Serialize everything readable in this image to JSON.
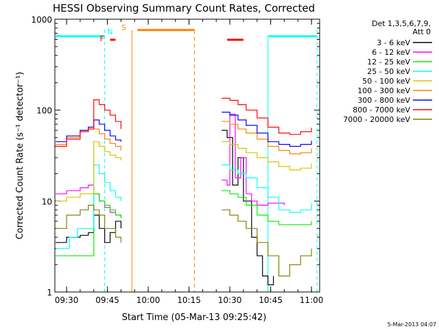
{
  "chart_data": {
    "type": "line",
    "title": "HESSI Observing Summary Count Rates, Corrected",
    "xlabel": "Start Time (05-Mar-13 09:25:42)",
    "ylabel": "Corrected Count Rate (s⁻¹ detector⁻¹)",
    "y_scale": "log",
    "ylim": [
      1,
      1000
    ],
    "xlim": [
      "09:25:42",
      "11:03:00"
    ],
    "x_ticks": [
      "09:30",
      "09:45",
      "10:00",
      "10:15",
      "10:30",
      "10:45",
      "11:00"
    ],
    "y_ticks": [
      "1",
      "10",
      "100",
      "1000"
    ],
    "legend_position": "right",
    "legend_header": [
      "Det 1,3,5,6,7,9,",
      "Att 0"
    ],
    "timestamp": "5-Mar-2013 04:07",
    "series": [
      {
        "name": "3 - 6 keV",
        "color": "#000000",
        "x": [
          "09:26",
          "09:30",
          "09:35",
          "09:38",
          "09:40",
          "09:42",
          "09:44",
          "09:46",
          "09:48",
          "09:50",
          "10:27",
          "10:29",
          "10:31",
          "10:33",
          "10:35",
          "10:38",
          "10:40",
          "10:42",
          "10:44",
          "10:46"
        ],
        "y": [
          3.5,
          4,
          4.2,
          4.5,
          7,
          5,
          3.5,
          4.5,
          6,
          5,
          60,
          50,
          15,
          30,
          10,
          4,
          2.5,
          1.5,
          1.2,
          1.5
        ]
      },
      {
        "name": "6 - 12 keV",
        "color": "#ff00ff",
        "x": [
          "09:26",
          "09:30",
          "09:35",
          "09:38",
          "09:40",
          "09:42",
          "09:44",
          "09:46",
          "09:48",
          "09:50",
          "10:27",
          "10:29",
          "10:30",
          "10:32",
          "10:34",
          "10:36",
          "10:38",
          "10:40",
          "10:44",
          "10:50"
        ],
        "y": [
          12,
          13,
          14,
          15,
          12,
          10,
          8.5,
          7.5,
          7,
          6.5,
          17,
          15,
          90,
          18,
          30,
          12,
          10,
          9,
          9.5,
          9
        ]
      },
      {
        "name": "12 - 25 keV",
        "color": "#00ee00",
        "x": [
          "09:26",
          "09:30",
          "09:35",
          "09:38",
          "09:40",
          "09:42",
          "09:44",
          "09:46",
          "09:48",
          "09:50",
          "10:27",
          "10:30",
          "10:33",
          "10:36",
          "10:40",
          "10:44",
          "10:48",
          "10:52",
          "10:56",
          "11:00"
        ],
        "y": [
          2.5,
          2.5,
          2.5,
          2.5,
          12,
          10,
          9,
          8,
          7,
          6.5,
          13,
          12,
          11,
          9,
          7,
          6,
          5.5,
          5.5,
          5.5,
          6
        ]
      },
      {
        "name": "25 - 50 keV",
        "color": "#00ffff",
        "x": [
          "09:26",
          "09:28",
          "09:31",
          "09:34",
          "09:38",
          "09:40",
          "09:42",
          "09:44",
          "09:46",
          "09:48",
          "09:50",
          "10:27",
          "10:30",
          "10:33",
          "10:36",
          "10:40",
          "10:44",
          "10:48",
          "10:52",
          "10:56",
          "11:00"
        ],
        "y": [
          3,
          3,
          4,
          5,
          5,
          25,
          20,
          16,
          13,
          11,
          10,
          25,
          22,
          20,
          18,
          14,
          11,
          8,
          7.5,
          8,
          9.5
        ]
      },
      {
        "name": "50 - 100 keV",
        "color": "#d4c400",
        "x": [
          "09:26",
          "09:30",
          "09:35",
          "09:38",
          "09:40",
          "09:42",
          "09:44",
          "09:46",
          "09:48",
          "09:50",
          "10:27",
          "10:30",
          "10:33",
          "10:36",
          "10:40",
          "10:44",
          "10:48",
          "10:52",
          "10:56",
          "11:00"
        ],
        "y": [
          10,
          11,
          12,
          12,
          45,
          40,
          35,
          32,
          30,
          28,
          45,
          42,
          38,
          34,
          30,
          27,
          24,
          22,
          23,
          26
        ]
      },
      {
        "name": "100 - 300 keV",
        "color": "#ff7f00",
        "x": [
          "09:26",
          "09:30",
          "09:35",
          "09:38",
          "09:40",
          "09:42",
          "09:44",
          "09:46",
          "09:48",
          "09:50",
          "10:27",
          "10:30",
          "10:33",
          "10:36",
          "10:40",
          "10:44",
          "10:48",
          "10:52",
          "10:56",
          "11:00"
        ],
        "y": [
          42,
          50,
          60,
          62,
          62,
          55,
          48,
          43,
          40,
          36,
          75,
          70,
          62,
          56,
          48,
          40,
          36,
          33,
          34,
          38
        ]
      },
      {
        "name": "300 - 800 keV",
        "color": "#0000ff",
        "x": [
          "09:26",
          "09:30",
          "09:35",
          "09:38",
          "09:40",
          "09:42",
          "09:44",
          "09:46",
          "09:48",
          "09:50",
          "10:27",
          "10:30",
          "10:33",
          "10:36",
          "10:40",
          "10:44",
          "10:48",
          "10:52",
          "10:56",
          "11:00"
        ],
        "y": [
          45,
          52,
          60,
          65,
          78,
          70,
          60,
          52,
          47,
          45,
          95,
          88,
          78,
          68,
          56,
          45,
          42,
          40,
          42,
          46
        ]
      },
      {
        "name": "800 - 7000 keV",
        "color": "#ff0000",
        "x": [
          "09:26",
          "09:30",
          "09:35",
          "09:38",
          "09:40",
          "09:42",
          "09:44",
          "09:46",
          "09:48",
          "09:50",
          "10:27",
          "10:30",
          "10:33",
          "10:36",
          "10:40",
          "10:44",
          "10:48",
          "10:52",
          "10:56",
          "11:00"
        ],
        "y": [
          40,
          48,
          58,
          62,
          130,
          115,
          100,
          88,
          75,
          62,
          135,
          128,
          115,
          100,
          82,
          65,
          56,
          54,
          58,
          64
        ]
      },
      {
        "name": "7000 - 20000 keV",
        "color": "#808000",
        "x": [
          "09:26",
          "09:30",
          "09:35",
          "09:38",
          "09:40",
          "09:42",
          "09:44",
          "09:46",
          "09:48",
          "09:50",
          "10:27",
          "10:30",
          "10:33",
          "10:36",
          "10:40",
          "10:44",
          "10:48",
          "10:52",
          "10:56",
          "11:00"
        ],
        "y": [
          5,
          7,
          8,
          9,
          8,
          7,
          5,
          5,
          4,
          3.5,
          8,
          7,
          6,
          5,
          3.5,
          2.5,
          1.5,
          2,
          2.5,
          3
        ]
      }
    ],
    "annotations": {
      "cyan_bars": {
        "color": "#00ffff",
        "y": 650,
        "spans": [
          [
            "09:26",
            "09:44"
          ],
          [
            "10:44",
            "11:02"
          ]
        ]
      },
      "orange_bar": {
        "color": "#ff7f00",
        "y": 760,
        "spans": [
          [
            "09:56",
            "10:17"
          ]
        ]
      },
      "red_bars": {
        "color": "#ff0000",
        "spans": [
          [
            "09:46",
            "09:48"
          ],
          [
            "10:29",
            "10:35"
          ]
        ]
      },
      "cyan_vlines": {
        "color": "#00ffff",
        "dashed": [
          "09:44",
          "11:02"
        ],
        "solid": [
          "10:44"
        ]
      },
      "orange_vlines": {
        "color": "#ff7f00",
        "solid": [
          "09:54"
        ],
        "dashed": [
          "10:17"
        ]
      },
      "letters": [
        {
          "text": "F",
          "color": "#ff0000",
          "t": "09:43"
        },
        {
          "text": "N",
          "color": "#00ffff",
          "t": "09:46"
        },
        {
          "text": "S",
          "color": "#ff7f00",
          "t": "09:51"
        }
      ]
    }
  }
}
